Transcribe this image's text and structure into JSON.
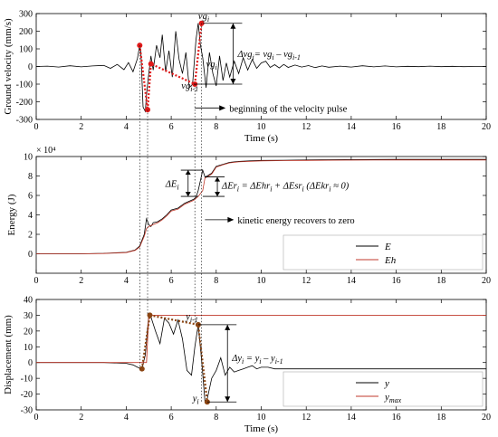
{
  "chart_data": [
    {
      "type": "line",
      "ylabel": "Ground velocity (mm/s)",
      "xlabel": "Time (s)",
      "xlim": [
        0,
        20
      ],
      "ylim": [
        -300,
        300
      ],
      "xticks": [
        0,
        2,
        4,
        6,
        8,
        10,
        12,
        14,
        16,
        18,
        20
      ],
      "yticks": [
        -300,
        -200,
        -100,
        0,
        100,
        200,
        300
      ],
      "grid": false,
      "series": [
        {
          "role": "ground-velocity",
          "color": "#000000",
          "x": [
            0,
            0.5,
            1,
            1.5,
            2,
            2.5,
            3,
            3.3,
            3.6,
            3.9,
            4.1,
            4.3,
            4.5,
            4.6,
            4.65,
            4.75,
            4.85,
            4.9,
            5.0,
            5.1,
            5.2,
            5.35,
            5.5,
            5.6,
            5.75,
            5.9,
            6.05,
            6.2,
            6.35,
            6.5,
            6.65,
            6.8,
            6.95,
            7.1,
            7.2,
            7.3,
            7.4,
            7.55,
            7.7,
            7.85,
            8.0,
            8.15,
            8.3,
            8.45,
            8.6,
            8.8,
            9.0,
            9.2,
            9.4,
            9.6,
            9.8,
            10,
            10.2,
            10.4,
            10.6,
            10.8,
            11,
            11.2,
            11.5,
            11.8,
            12.1,
            12.4,
            12.7,
            13,
            13.5,
            14,
            14.5,
            15,
            15.5,
            16,
            16.5,
            17,
            17.5,
            18,
            18.5,
            19,
            19.5,
            20
          ],
          "y": [
            0,
            2,
            -3,
            4,
            -2,
            3,
            6,
            -10,
            12,
            -18,
            22,
            -30,
            45,
            120,
            85,
            -230,
            -255,
            -160,
            -40,
            60,
            -20,
            120,
            50,
            180,
            -30,
            90,
            -60,
            200,
            40,
            -40,
            80,
            -120,
            -100,
            150,
            245,
            120,
            50,
            -120,
            80,
            -40,
            -110,
            60,
            -80,
            20,
            -60,
            30,
            -40,
            50,
            -20,
            40,
            -10,
            20,
            30,
            -5,
            10,
            -8,
            12,
            -5,
            8,
            -3,
            5,
            -6,
            3,
            -4,
            2,
            -3,
            4,
            -2,
            3,
            -2,
            1,
            -1,
            2,
            -1,
            1,
            -1,
            0,
            0
          ]
        },
        {
          "role": "peak-markers",
          "color": "#e01a1a",
          "x": [
            4.6,
            4.95,
            5.1,
            7.05,
            7.35
          ],
          "y": [
            120,
            -245,
            15,
            -100,
            245
          ]
        }
      ],
      "annotations": [
        {
          "text": "vg",
          "sub": "i",
          "near": [
            7.4,
            280
          ]
        },
        {
          "text": "vg",
          "sub": "i",
          "near": [
            7.6,
            10
          ]
        },
        {
          "text": "vg",
          "sub": "i-1",
          "near": [
            6.7,
            -130
          ]
        },
        {
          "text": "Δvg",
          "sub": "i",
          "rest": "= vg",
          "sub2": "i",
          "rest2": " – vg",
          "sub3": "i-1",
          "near": [
            8.8,
            110
          ]
        },
        {
          "text": "beginning of the velocity pulse",
          "near": [
            7.2,
            -235
          ]
        }
      ]
    },
    {
      "type": "line",
      "ylabel": "Energy (J)",
      "xlabel": "",
      "multiplier": "× 10⁴",
      "xlim": [
        0,
        20
      ],
      "ylim": [
        -2,
        10
      ],
      "xticks": [
        0,
        2,
        4,
        6,
        8,
        10,
        12,
        14,
        16,
        18,
        20
      ],
      "yticks": [
        0,
        2,
        4,
        6,
        8,
        10
      ],
      "legend_position": "bottom-right",
      "series": [
        {
          "name": "E",
          "color": "#000000",
          "x": [
            0,
            1,
            2,
            3,
            4,
            4.4,
            4.6,
            4.8,
            4.9,
            5.0,
            5.1,
            5.2,
            5.4,
            5.6,
            5.8,
            6.0,
            6.3,
            6.6,
            7.0,
            7.1,
            7.2,
            7.4,
            7.5,
            7.6,
            7.8,
            8.0,
            8.3,
            8.6,
            9,
            9.5,
            10,
            11,
            12,
            13,
            14,
            15,
            16,
            17,
            18,
            19,
            20
          ],
          "y": [
            0,
            0,
            0,
            0.05,
            0.15,
            0.4,
            0.8,
            2.0,
            3.6,
            3.0,
            2.8,
            3.2,
            3.3,
            3.6,
            4.0,
            4.5,
            4.7,
            5.2,
            5.6,
            5.8,
            6.5,
            8.6,
            7.9,
            8.0,
            8.3,
            9.0,
            9.2,
            9.4,
            9.5,
            9.55,
            9.6,
            9.62,
            9.65,
            9.67,
            9.68,
            9.69,
            9.7,
            9.7,
            9.7,
            9.7,
            9.7
          ]
        },
        {
          "name": "Eh",
          "color": "#c0392b",
          "x": [
            0,
            1,
            2,
            3,
            4,
            4.4,
            4.6,
            4.8,
            4.9,
            5.0,
            5.2,
            5.4,
            5.6,
            5.8,
            6.0,
            6.3,
            6.6,
            7.0,
            7.2,
            7.4,
            7.5,
            7.6,
            7.8,
            8.0,
            8.3,
            8.6,
            9,
            9.5,
            10,
            11,
            12,
            13,
            14,
            15,
            16,
            17,
            18,
            19,
            20
          ],
          "y": [
            0,
            0,
            0,
            0.03,
            0.12,
            0.35,
            0.7,
            1.8,
            2.6,
            2.8,
            3.0,
            3.2,
            3.5,
            3.9,
            4.4,
            4.6,
            5.1,
            5.5,
            5.9,
            6.5,
            7.8,
            7.9,
            8.2,
            8.9,
            9.15,
            9.35,
            9.45,
            9.5,
            9.55,
            9.58,
            9.6,
            9.62,
            9.63,
            9.64,
            9.65,
            9.65,
            9.65,
            9.65,
            9.65
          ]
        }
      ],
      "annotations": [
        {
          "text": "ΔE",
          "sub": "i",
          "near": [
            6.4,
            6.7
          ]
        },
        {
          "text": "ΔEr",
          "sub": "i",
          "rest": " = ΔEhr",
          "sub2": "i",
          "rest2": " + ΔEsr",
          "sub3": "i",
          "rest3": " (ΔEkr",
          "sub4": "i",
          "rest4": " ≈ 0)",
          "near": [
            8.5,
            6.6
          ]
        },
        {
          "text": "kinetic energy recovers to zero",
          "near": [
            8.6,
            3.6
          ]
        }
      ]
    },
    {
      "type": "line",
      "ylabel": "Displacement (mm)",
      "xlabel": "Time (s)",
      "xlim": [
        0,
        20
      ],
      "ylim": [
        -30,
        40
      ],
      "xticks": [
        0,
        2,
        4,
        6,
        8,
        10,
        12,
        14,
        16,
        18,
        20
      ],
      "yticks": [
        -30,
        -20,
        -10,
        0,
        10,
        20,
        30,
        40
      ],
      "legend_position": "bottom-right",
      "series": [
        {
          "name": "y",
          "color": "#000000",
          "x": [
            0,
            1,
            2,
            3,
            4,
            4.3,
            4.5,
            4.7,
            4.85,
            5.0,
            5.1,
            5.3,
            5.5,
            5.7,
            5.9,
            6.1,
            6.3,
            6.5,
            6.7,
            6.9,
            7.05,
            7.2,
            7.35,
            7.5,
            7.6,
            7.8,
            8.0,
            8.2,
            8.4,
            8.6,
            8.8,
            9.0,
            9.2,
            9.4,
            9.6,
            9.8,
            10,
            10.3,
            10.6,
            11,
            11.5,
            12,
            13,
            14,
            15,
            16,
            17,
            18,
            19,
            20
          ],
          "y": [
            0,
            0,
            0,
            0,
            -0.5,
            -1.5,
            -3,
            -4,
            5,
            30,
            29,
            20,
            12,
            28,
            25,
            18,
            27,
            15,
            -5,
            -8,
            10,
            24,
            2,
            -25,
            -23,
            -10,
            -5,
            3,
            -8,
            -3,
            -6,
            -5,
            -4,
            -3,
            -2,
            -4,
            -3,
            -3,
            -4,
            -4,
            -4,
            -4,
            -4,
            -4,
            -4,
            -4,
            -4,
            -4,
            -4,
            -4
          ]
        },
        {
          "name": "y_max",
          "color": "#c0392b",
          "x": [
            0,
            4.9,
            5.0,
            20
          ],
          "y": [
            0,
            0,
            30,
            30
          ]
        },
        {
          "role": "peak-markers",
          "color": "#8b4513",
          "x": [
            4.7,
            5.05,
            7.2,
            7.6
          ],
          "y": [
            -4,
            30,
            24,
            -25
          ]
        }
      ],
      "annotations": [
        {
          "text": "y",
          "sub": "i-1",
          "near": [
            6.9,
            29
          ]
        },
        {
          "text": "y",
          "sub": "i",
          "near": [
            7.1,
            -24
          ]
        },
        {
          "text": "Δy",
          "sub": "i",
          "rest": " = y",
          "sub2": "i",
          "rest2": " – y",
          "sub3": "i-1",
          "near": [
            8.6,
            1
          ]
        }
      ]
    }
  ]
}
